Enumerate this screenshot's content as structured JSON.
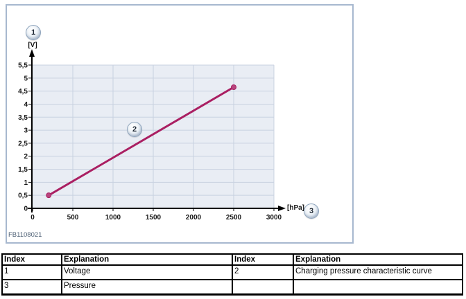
{
  "panel": {
    "figure_code": "FB1108021",
    "callouts": [
      "1",
      "2",
      "3"
    ],
    "y_unit": "[V]",
    "x_unit": "[hPa]"
  },
  "chart_data": {
    "type": "line",
    "title": "",
    "xlabel": "[hPa]",
    "ylabel": "[V]",
    "xlim": [
      0,
      3000
    ],
    "ylim": [
      0,
      5.5
    ],
    "x_ticks": [
      0,
      500,
      1000,
      1500,
      2000,
      2500,
      3000
    ],
    "y_ticks": [
      0,
      0.5,
      1,
      1.5,
      2,
      2.5,
      3,
      3.5,
      4,
      4.5,
      5,
      5.5
    ],
    "y_tick_labels": [
      "0",
      "0,5",
      "1",
      "1,5",
      "2",
      "2,5",
      "3",
      "3,5",
      "4",
      "4,5",
      "5",
      "5,5"
    ],
    "grid": true,
    "legend": "none",
    "series": [
      {
        "name": "Charging pressure characteristic curve",
        "points": [
          [
            200,
            0.5
          ],
          [
            2500,
            4.65
          ]
        ],
        "color": "#aa1f62",
        "marker_fill": "#b8467e",
        "markers": "endpoints"
      }
    ]
  },
  "colors": {
    "panel_border": "#a7b8cf",
    "plot_fill": "#e9edf4",
    "grid_line": "#c8d1e0",
    "axis": "#000000",
    "curve": "#aa1f62",
    "figure_code_text": "#4a5d72"
  },
  "table": {
    "headers": [
      "Index",
      "Explanation",
      "Index",
      "Explanation"
    ],
    "rows": [
      [
        "1",
        "Voltage",
        "2",
        "Charging pressure characteristic curve"
      ],
      [
        "3",
        "Pressure",
        "",
        ""
      ]
    ]
  }
}
